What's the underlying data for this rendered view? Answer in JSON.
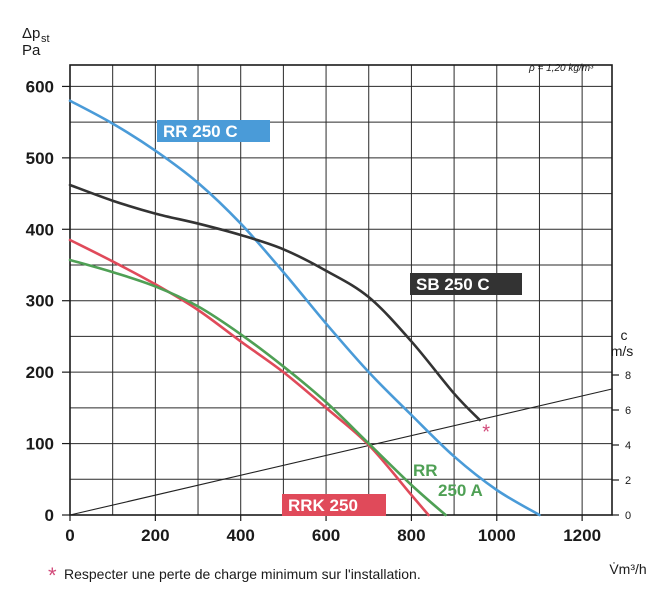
{
  "chart_data": {
    "type": "line",
    "ylabel_main": "Δp",
    "ylabel_sub": "st",
    "ylabel_unit": "Pa",
    "xlabel": "V̇m³/h",
    "right_label_top": "c",
    "right_label_unit": "m/s",
    "density_note": "ρ = 1,20 kg/m³",
    "footnote_star": "*",
    "footnote": "Respecter une perte de charge minimum sur l'installation.",
    "xlim": [
      0,
      1270
    ],
    "ylim": [
      0,
      630
    ],
    "x_ticks": [
      "0",
      "200",
      "400",
      "600",
      "800",
      "1000",
      "1200"
    ],
    "y_ticks": [
      "0",
      "100",
      "200",
      "300",
      "400",
      "500",
      "600"
    ],
    "right_ticks": [
      "0",
      "2",
      "4",
      "6",
      "8"
    ],
    "grid": true,
    "series": [
      {
        "name": "RR 250 C",
        "color": "#4a9bd8",
        "label_bg": "#4a9bd8",
        "label_color": "#ffffff",
        "x": [
          0,
          100,
          200,
          300,
          400,
          500,
          600,
          700,
          800,
          900,
          1000,
          1100
        ],
        "y": [
          580,
          548,
          510,
          465,
          408,
          340,
          268,
          200,
          140,
          82,
          35,
          0
        ]
      },
      {
        "name": "SB 250 C",
        "color": "#333333",
        "label_bg": "#333333",
        "label_color": "#ffffff",
        "x": [
          0,
          100,
          200,
          300,
          400,
          500,
          600,
          700,
          800,
          900,
          960
        ],
        "y": [
          462,
          440,
          422,
          408,
          392,
          372,
          342,
          305,
          243,
          170,
          133
        ]
      },
      {
        "name": "RRK 250",
        "color": "#e04a5a",
        "label_bg": "#e04a5a",
        "label_color": "#ffffff",
        "x": [
          0,
          100,
          200,
          300,
          400,
          500,
          600,
          700,
          800,
          840
        ],
        "y": [
          385,
          355,
          323,
          287,
          243,
          200,
          150,
          98,
          28,
          0
        ]
      },
      {
        "name_line1": "RR",
        "name_line2": "250 A",
        "color": "#4fa055",
        "label_color": "#4fa055",
        "x": [
          0,
          100,
          200,
          300,
          400,
          500,
          600,
          700,
          800,
          880
        ],
        "y": [
          357,
          340,
          320,
          292,
          253,
          208,
          158,
          100,
          42,
          0
        ]
      }
    ],
    "velocity_line": {
      "color": "#222222",
      "x": [
        0,
        1270
      ],
      "y_velocity": [
        0,
        7.2
      ],
      "right_axis_max": 9
    },
    "marker": {
      "symbol": "*",
      "color": "#d24a7a",
      "x": 975,
      "y": 118
    }
  }
}
